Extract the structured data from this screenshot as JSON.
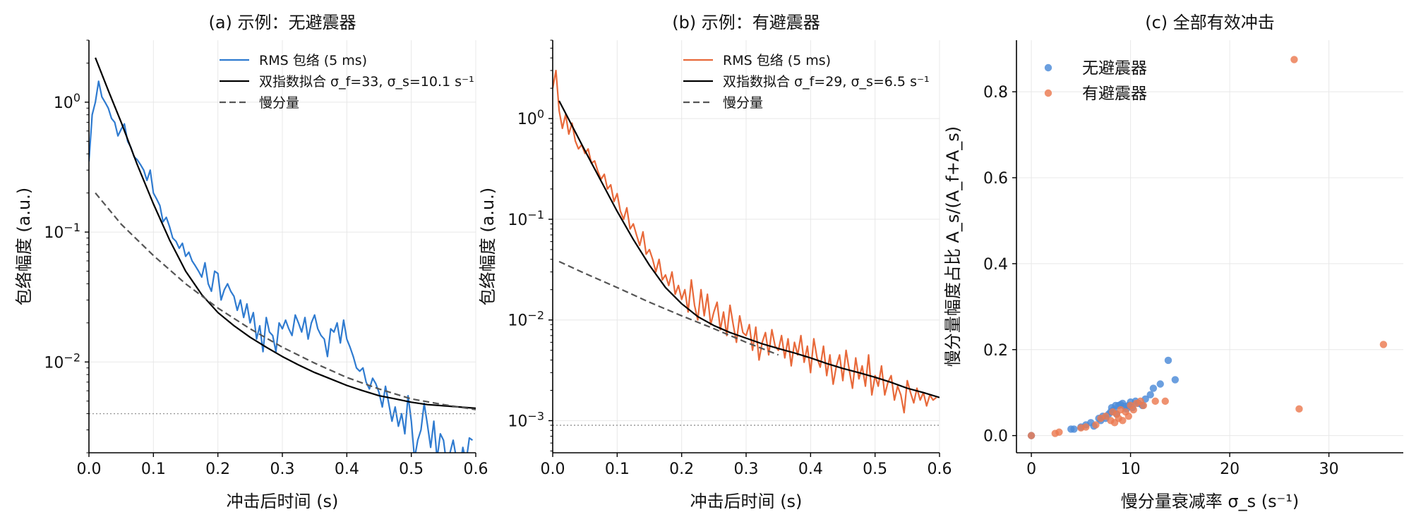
{
  "chart_data": [
    {
      "type": "line",
      "title": "(a) 示例：无避震器",
      "xlabel": "冲击后时间 (s)",
      "ylabel": "包络幅度 (a.u.)",
      "yscale": "log",
      "xlim": [
        0,
        0.6
      ],
      "ylim": [
        0.002,
        3.0
      ],
      "xticks": [
        "0.0",
        "0.1",
        "0.2",
        "0.3",
        "0.4",
        "0.5",
        "0.6"
      ],
      "yticks": [
        {
          "value": 1,
          "label": "10^0"
        },
        {
          "value": 0.1,
          "label": "10^-1"
        },
        {
          "value": 0.01,
          "label": "10^-2"
        }
      ],
      "grid": true,
      "legend_position": "top-right",
      "series": [
        {
          "name": "RMS 包络 (5 ms)",
          "color": "#2f7bd0",
          "style": "solid",
          "x": [
            0.0,
            0.005,
            0.01,
            0.015,
            0.02,
            0.025,
            0.03,
            0.035,
            0.04,
            0.045,
            0.05,
            0.055,
            0.06,
            0.065,
            0.07,
            0.075,
            0.08,
            0.085,
            0.09,
            0.095,
            0.1,
            0.105,
            0.11,
            0.115,
            0.12,
            0.125,
            0.13,
            0.135,
            0.14,
            0.145,
            0.15,
            0.155,
            0.16,
            0.165,
            0.17,
            0.175,
            0.18,
            0.185,
            0.19,
            0.195,
            0.2,
            0.205,
            0.21,
            0.215,
            0.22,
            0.225,
            0.23,
            0.235,
            0.24,
            0.245,
            0.25,
            0.255,
            0.26,
            0.265,
            0.27,
            0.275,
            0.28,
            0.285,
            0.29,
            0.295,
            0.3,
            0.305,
            0.31,
            0.315,
            0.32,
            0.325,
            0.33,
            0.335,
            0.34,
            0.345,
            0.35,
            0.355,
            0.36,
            0.365,
            0.37,
            0.375,
            0.38,
            0.385,
            0.39,
            0.395,
            0.4,
            0.405,
            0.41,
            0.415,
            0.42,
            0.425,
            0.43,
            0.435,
            0.44,
            0.445,
            0.45,
            0.455,
            0.46,
            0.465,
            0.47,
            0.475,
            0.48,
            0.485,
            0.49,
            0.495,
            0.5,
            0.505,
            0.51,
            0.515,
            0.52,
            0.525,
            0.53,
            0.535,
            0.54,
            0.545,
            0.55,
            0.555,
            0.56,
            0.565,
            0.57,
            0.575,
            0.58,
            0.585,
            0.59,
            0.595
          ],
          "values": [
            0.35,
            0.8,
            1.0,
            1.45,
            1.1,
            1.0,
            0.9,
            0.75,
            0.7,
            0.55,
            0.62,
            0.68,
            0.5,
            0.45,
            0.38,
            0.36,
            0.33,
            0.3,
            0.25,
            0.3,
            0.2,
            0.18,
            0.16,
            0.12,
            0.13,
            0.11,
            0.09,
            0.085,
            0.075,
            0.082,
            0.065,
            0.07,
            0.06,
            0.055,
            0.05,
            0.045,
            0.058,
            0.04,
            0.035,
            0.05,
            0.048,
            0.03,
            0.036,
            0.04,
            0.035,
            0.032,
            0.025,
            0.03,
            0.022,
            0.028,
            0.02,
            0.024,
            0.015,
            0.019,
            0.012,
            0.022,
            0.017,
            0.016,
            0.012,
            0.02,
            0.018,
            0.021,
            0.018,
            0.016,
            0.023,
            0.02,
            0.017,
            0.022,
            0.015,
            0.02,
            0.023,
            0.018,
            0.016,
            0.015,
            0.011,
            0.018,
            0.017,
            0.02,
            0.014,
            0.021,
            0.015,
            0.013,
            0.011,
            0.009,
            0.0085,
            0.009,
            0.007,
            0.0062,
            0.0075,
            0.0068,
            0.0058,
            0.0045,
            0.0065,
            0.0048,
            0.0035,
            0.0045,
            0.0032,
            0.004,
            0.0028,
            0.0055,
            0.0035,
            0.0018,
            0.0025,
            0.003,
            0.0048,
            0.0033,
            0.0022,
            0.0035,
            0.0018,
            0.0028,
            0.0025,
            0.0016,
            0.002,
            0.0025,
            0.0018,
            0.0015,
            0.0022,
            0.0017,
            0.0026,
            0.0025
          ]
        },
        {
          "name": "双指数拟合 σ_f=33, σ_s=10.1 s⁻¹",
          "color": "#000000",
          "style": "solid",
          "x": [
            0.01,
            0.03,
            0.05,
            0.075,
            0.1,
            0.125,
            0.15,
            0.175,
            0.2,
            0.225,
            0.25,
            0.275,
            0.3,
            0.325,
            0.35,
            0.375,
            0.4,
            0.425,
            0.45,
            0.475,
            0.5,
            0.525,
            0.55,
            0.575,
            0.6
          ],
          "values": [
            2.2,
            1.23,
            0.7,
            0.33,
            0.165,
            0.087,
            0.05,
            0.033,
            0.024,
            0.019,
            0.0155,
            0.013,
            0.011,
            0.0095,
            0.0083,
            0.0074,
            0.0066,
            0.006,
            0.0055,
            0.0052,
            0.0049,
            0.0047,
            0.0046,
            0.0045,
            0.0044
          ]
        },
        {
          "name": "慢分量",
          "color": "#555555",
          "style": "dashed",
          "x": [
            0.01,
            0.05,
            0.1,
            0.15,
            0.2,
            0.25,
            0.3,
            0.35,
            0.4,
            0.45,
            0.5,
            0.55,
            0.6
          ],
          "values": [
            0.2,
            0.115,
            0.066,
            0.04,
            0.026,
            0.018,
            0.013,
            0.0098,
            0.0076,
            0.0062,
            0.0052,
            0.0047,
            0.0043
          ]
        },
        {
          "name": "",
          "color": "#999999",
          "style": "dotted",
          "x": [
            0.0,
            0.6
          ],
          "values": [
            0.004,
            0.004
          ]
        }
      ]
    },
    {
      "type": "line",
      "title": "(b) 示例：有避震器",
      "xlabel": "冲击后时间 (s)",
      "ylabel": "包络幅度 (a.u.)",
      "yscale": "log",
      "xlim": [
        0,
        0.6
      ],
      "ylim": [
        0.00048,
        6.0
      ],
      "xticks": [
        "0.0",
        "0.1",
        "0.2",
        "0.3",
        "0.4",
        "0.5",
        "0.6"
      ],
      "yticks": [
        {
          "value": 1,
          "label": "10^0"
        },
        {
          "value": 0.1,
          "label": "10^-1"
        },
        {
          "value": 0.01,
          "label": "10^-2"
        },
        {
          "value": 0.001,
          "label": "10^-3"
        }
      ],
      "grid": true,
      "legend_position": "top-right",
      "series": [
        {
          "name": "RMS 包络 (5 ms)",
          "color": "#e8693a",
          "style": "solid",
          "x": [
            0.0,
            0.005,
            0.01,
            0.015,
            0.02,
            0.025,
            0.03,
            0.035,
            0.04,
            0.045,
            0.05,
            0.055,
            0.06,
            0.065,
            0.07,
            0.075,
            0.08,
            0.085,
            0.09,
            0.095,
            0.1,
            0.105,
            0.11,
            0.115,
            0.12,
            0.125,
            0.13,
            0.135,
            0.14,
            0.145,
            0.15,
            0.155,
            0.16,
            0.165,
            0.17,
            0.175,
            0.18,
            0.185,
            0.19,
            0.195,
            0.2,
            0.205,
            0.21,
            0.215,
            0.22,
            0.225,
            0.23,
            0.235,
            0.24,
            0.245,
            0.25,
            0.255,
            0.26,
            0.265,
            0.27,
            0.275,
            0.28,
            0.285,
            0.29,
            0.295,
            0.3,
            0.305,
            0.31,
            0.315,
            0.32,
            0.325,
            0.33,
            0.335,
            0.34,
            0.345,
            0.35,
            0.355,
            0.36,
            0.365,
            0.37,
            0.375,
            0.38,
            0.385,
            0.39,
            0.395,
            0.4,
            0.405,
            0.41,
            0.415,
            0.42,
            0.425,
            0.43,
            0.435,
            0.44,
            0.445,
            0.45,
            0.455,
            0.46,
            0.465,
            0.47,
            0.475,
            0.48,
            0.485,
            0.49,
            0.495,
            0.5,
            0.505,
            0.51,
            0.515,
            0.52,
            0.525,
            0.53,
            0.535,
            0.54,
            0.545,
            0.55,
            0.555,
            0.56,
            0.565,
            0.57,
            0.575,
            0.58,
            0.585,
            0.59,
            0.595
          ],
          "values": [
            2.0,
            3.0,
            1.2,
            0.8,
            1.1,
            0.7,
            0.9,
            0.6,
            0.5,
            0.55,
            0.45,
            0.5,
            0.36,
            0.38,
            0.3,
            0.25,
            0.28,
            0.2,
            0.22,
            0.15,
            0.18,
            0.12,
            0.1,
            0.13,
            0.08,
            0.09,
            0.07,
            0.055,
            0.075,
            0.045,
            0.05,
            0.04,
            0.03,
            0.04,
            0.025,
            0.028,
            0.022,
            0.03,
            0.018,
            0.022,
            0.016,
            0.02,
            0.012,
            0.025,
            0.014,
            0.01,
            0.02,
            0.011,
            0.018,
            0.009,
            0.012,
            0.015,
            0.008,
            0.012,
            0.007,
            0.014,
            0.009,
            0.006,
            0.011,
            0.0075,
            0.007,
            0.009,
            0.005,
            0.0085,
            0.004,
            0.006,
            0.0075,
            0.0045,
            0.008,
            0.0055,
            0.005,
            0.007,
            0.0042,
            0.0065,
            0.0035,
            0.006,
            0.0045,
            0.007,
            0.0038,
            0.0055,
            0.003,
            0.0065,
            0.0042,
            0.0034,
            0.0055,
            0.0028,
            0.0045,
            0.0023,
            0.0035,
            0.0045,
            0.0025,
            0.005,
            0.0032,
            0.0021,
            0.0042,
            0.0026,
            0.0035,
            0.0022,
            0.0045,
            0.0018,
            0.0028,
            0.0022,
            0.0035,
            0.0018,
            0.0024,
            0.0028,
            0.0016,
            0.0022,
            0.0018,
            0.0012,
            0.0025,
            0.0019,
            0.0015,
            0.0021,
            0.0016,
            0.0019,
            0.0014,
            0.0018,
            0.0016,
            0.0017
          ]
        },
        {
          "name": "双指数拟合 σ_f=29, σ_s=6.5 s⁻¹",
          "color": "#000000",
          "style": "solid",
          "x": [
            0.01,
            0.03,
            0.05,
            0.075,
            0.1,
            0.125,
            0.15,
            0.175,
            0.2,
            0.225,
            0.25,
            0.275,
            0.3,
            0.325,
            0.35,
            0.375,
            0.4,
            0.425,
            0.45,
            0.475,
            0.5,
            0.525,
            0.55,
            0.575,
            0.6
          ],
          "values": [
            1.5,
            0.85,
            0.48,
            0.24,
            0.12,
            0.063,
            0.035,
            0.021,
            0.0145,
            0.0108,
            0.0088,
            0.0075,
            0.0066,
            0.0058,
            0.0052,
            0.0047,
            0.0042,
            0.0037,
            0.0033,
            0.003,
            0.0027,
            0.0024,
            0.0021,
            0.0019,
            0.0017
          ]
        },
        {
          "name": "慢分量",
          "color": "#555555",
          "style": "dashed",
          "x": [
            0.01,
            0.05,
            0.1,
            0.15,
            0.2,
            0.25,
            0.3,
            0.35
          ],
          "values": [
            0.038,
            0.029,
            0.021,
            0.015,
            0.011,
            0.0082,
            0.006,
            0.0045
          ]
        },
        {
          "name": "",
          "color": "#999999",
          "style": "dotted",
          "x": [
            0.0,
            0.6
          ],
          "values": [
            0.0009,
            0.0009
          ]
        }
      ]
    },
    {
      "type": "scatter",
      "title": "(c) 全部有效冲击",
      "xlabel": "慢分量衰减率 σ_s (s⁻¹)",
      "ylabel": "慢分量幅度占比 A_s/(A_f+A_s)",
      "xlim": [
        -1.5,
        37.5
      ],
      "ylim": [
        -0.04,
        0.92
      ],
      "xticks": [
        "0",
        "10",
        "20",
        "30"
      ],
      "yticks": [
        "0.0",
        "0.2",
        "0.4",
        "0.6",
        "0.8"
      ],
      "grid": true,
      "legend_position": "top-left",
      "series": [
        {
          "name": "无避震器",
          "color": "#4a8ad8",
          "x": [
            0,
            4,
            4.3,
            5,
            5.5,
            6,
            6.3,
            6.8,
            7,
            7.2,
            7.5,
            7.8,
            8,
            8.1,
            8.3,
            8.5,
            8.6,
            8.8,
            9,
            9.2,
            9.4,
            9.6,
            9.8,
            10,
            10.2,
            10.5,
            10.8,
            11.2,
            11.5,
            12,
            12.3,
            13,
            13.8,
            14.5
          ],
          "values": [
            0,
            0.015,
            0.015,
            0.02,
            0.025,
            0.03,
            0.022,
            0.04,
            0.035,
            0.045,
            0.04,
            0.05,
            0.055,
            0.065,
            0.06,
            0.07,
            0.05,
            0.07,
            0.072,
            0.075,
            0.068,
            0.062,
            0.07,
            0.078,
            0.065,
            0.08,
            0.075,
            0.07,
            0.085,
            0.095,
            0.11,
            0.12,
            0.175,
            0.13
          ]
        },
        {
          "name": "有避震器",
          "color": "#eb7a50",
          "x": [
            0,
            2.4,
            2.8,
            5,
            5.5,
            6.5,
            7,
            7.5,
            8,
            8.2,
            8.4,
            8.6,
            8.8,
            9,
            9.2,
            9.5,
            9.8,
            10,
            10.3,
            10.6,
            11,
            11.3,
            12.5,
            13.5,
            26.5,
            27,
            35.5
          ],
          "values": [
            0,
            0.005,
            0.008,
            0.018,
            0.02,
            0.025,
            0.04,
            0.045,
            0.035,
            0.055,
            0.03,
            0.05,
            0.04,
            0.06,
            0.035,
            0.055,
            0.045,
            0.07,
            0.06,
            0.075,
            0.08,
            0.07,
            0.08,
            0.08,
            0.875,
            0.062,
            0.212
          ]
        }
      ]
    }
  ]
}
